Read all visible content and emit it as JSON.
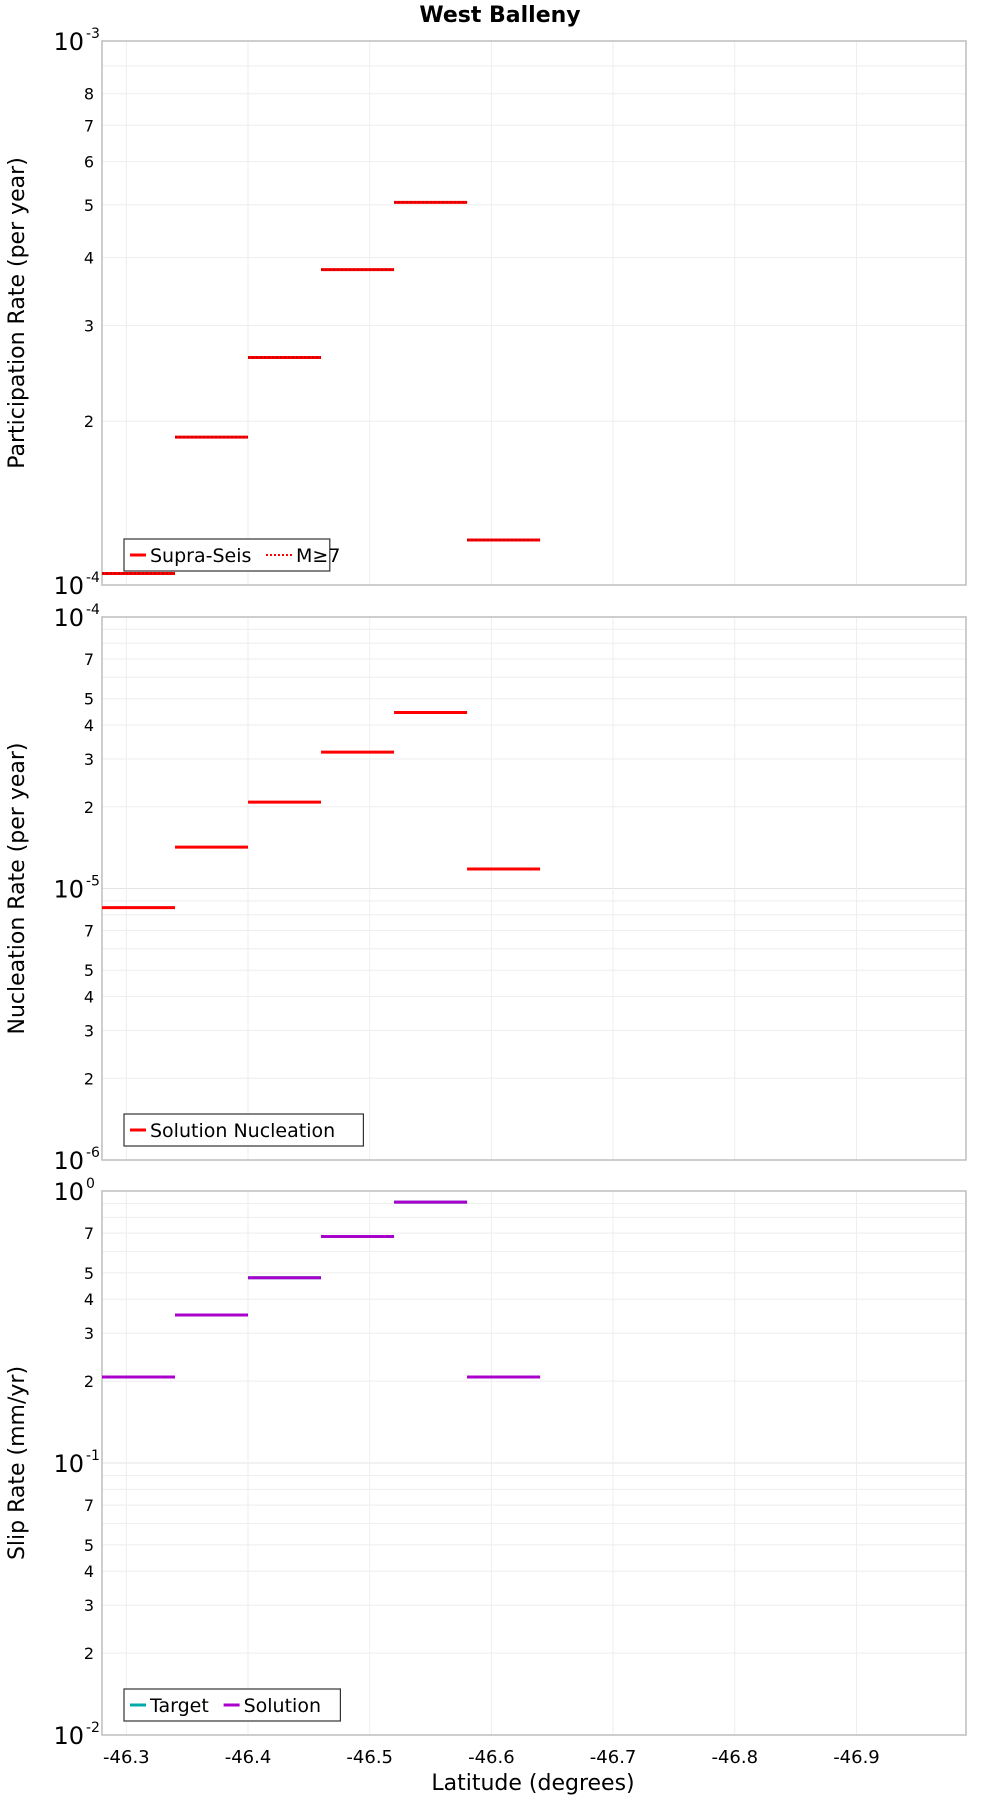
{
  "chart_data": {
    "type": "line",
    "title": "West Balleny",
    "xlabel": "Latitude (degrees)",
    "x_ticks": [
      "-46.3",
      "-46.4",
      "-46.5",
      "-46.6",
      "-46.7",
      "-46.8",
      "-46.9"
    ],
    "x_tick_values": [
      -46.3,
      -46.4,
      -46.5,
      -46.6,
      -46.7,
      -46.8,
      -46.9
    ],
    "xlim": [
      -46.28,
      -46.99
    ],
    "x_axis_reversed": true,
    "grid": true,
    "panels": [
      {
        "ylabel": "Participation Rate (per year)",
        "yscale": "log",
        "ylim": [
          0.0001,
          0.001
        ],
        "major_ticks": [
          {
            "base": "10",
            "exp": "-4",
            "value": 0.0001
          },
          {
            "base": "10",
            "exp": "-3",
            "value": 0.001
          }
        ],
        "minor_ticks": [
          {
            "label": "2",
            "value": 0.0002
          },
          {
            "label": "3",
            "value": 0.0003
          },
          {
            "label": "4",
            "value": 0.0004
          },
          {
            "label": "5",
            "value": 0.0005
          },
          {
            "label": "6",
            "value": 0.0006
          },
          {
            "label": "7",
            "value": 0.0007
          },
          {
            "label": "8",
            "value": 0.0008
          }
        ],
        "legend": {
          "position": "bottom-left",
          "entries": [
            {
              "name": "Supra-Seis",
              "color": "#ff0000",
              "style": "solid"
            },
            {
              "name": "M≥7",
              "color": "#ff0000",
              "style": "dotted"
            }
          ]
        },
        "series": [
          {
            "name": "Supra-Seis",
            "color": "#ff0000",
            "style": "solid",
            "segments": [
              {
                "x0": -46.28,
                "x1": -46.34,
                "y": 0.000105
              },
              {
                "x0": -46.34,
                "x1": -46.4,
                "y": 0.000187
              },
              {
                "x0": -46.4,
                "x1": -46.46,
                "y": 0.000262
              },
              {
                "x0": -46.46,
                "x1": -46.52,
                "y": 0.00038
              },
              {
                "x0": -46.52,
                "x1": -46.58,
                "y": 0.000505
              },
              {
                "x0": -46.58,
                "x1": -46.64,
                "y": 0.000121
              }
            ]
          },
          {
            "name": "M≥7",
            "color": "#ff0000",
            "style": "dotted",
            "segments": [
              {
                "x0": -46.28,
                "x1": -46.34,
                "y": 0.000105
              },
              {
                "x0": -46.34,
                "x1": -46.4,
                "y": 0.000187
              },
              {
                "x0": -46.4,
                "x1": -46.46,
                "y": 0.000262
              },
              {
                "x0": -46.46,
                "x1": -46.52,
                "y": 0.00038
              },
              {
                "x0": -46.52,
                "x1": -46.58,
                "y": 0.000505
              },
              {
                "x0": -46.58,
                "x1": -46.64,
                "y": 0.000121
              }
            ]
          }
        ]
      },
      {
        "ylabel": "Nucleation Rate (per year)",
        "yscale": "log",
        "ylim": [
          1e-06,
          0.0001
        ],
        "major_ticks": [
          {
            "base": "10",
            "exp": "-6",
            "value": 1e-06
          },
          {
            "base": "10",
            "exp": "-5",
            "value": 1e-05
          },
          {
            "base": "10",
            "exp": "-4",
            "value": 0.0001
          }
        ],
        "minor_ticks": [
          {
            "label": "2",
            "value": 2e-06
          },
          {
            "label": "3",
            "value": 3e-06
          },
          {
            "label": "4",
            "value": 4e-06
          },
          {
            "label": "5",
            "value": 5e-06
          },
          {
            "label": "7",
            "value": 7e-06
          },
          {
            "label": "2",
            "value": 2e-05
          },
          {
            "label": "3",
            "value": 3e-05
          },
          {
            "label": "4",
            "value": 4e-05
          },
          {
            "label": "5",
            "value": 5e-05
          },
          {
            "label": "7",
            "value": 7e-05
          }
        ],
        "legend": {
          "position": "bottom-left",
          "entries": [
            {
              "name": "Solution Nucleation",
              "color": "#ff0000",
              "style": "solid"
            }
          ]
        },
        "series": [
          {
            "name": "Solution Nucleation",
            "color": "#ff0000",
            "style": "solid",
            "segments": [
              {
                "x0": -46.28,
                "x1": -46.34,
                "y": 8.5e-06
              },
              {
                "x0": -46.34,
                "x1": -46.4,
                "y": 1.42e-05
              },
              {
                "x0": -46.4,
                "x1": -46.46,
                "y": 2.08e-05
              },
              {
                "x0": -46.46,
                "x1": -46.52,
                "y": 3.18e-05
              },
              {
                "x0": -46.52,
                "x1": -46.58,
                "y": 4.45e-05
              },
              {
                "x0": -46.58,
                "x1": -46.64,
                "y": 1.18e-05
              }
            ]
          }
        ]
      },
      {
        "ylabel": "Slip Rate (mm/yr)",
        "yscale": "log",
        "ylim": [
          0.01,
          1
        ],
        "major_ticks": [
          {
            "base": "10",
            "exp": "-2",
            "value": 0.01
          },
          {
            "base": "10",
            "exp": "-1",
            "value": 0.1
          },
          {
            "base": "10",
            "exp": "0",
            "value": 1
          }
        ],
        "minor_ticks": [
          {
            "label": "2",
            "value": 0.02
          },
          {
            "label": "3",
            "value": 0.03
          },
          {
            "label": "4",
            "value": 0.04
          },
          {
            "label": "5",
            "value": 0.05
          },
          {
            "label": "7",
            "value": 0.07
          },
          {
            "label": "2",
            "value": 0.2
          },
          {
            "label": "3",
            "value": 0.3
          },
          {
            "label": "4",
            "value": 0.4
          },
          {
            "label": "5",
            "value": 0.5
          },
          {
            "label": "7",
            "value": 0.7
          }
        ],
        "legend": {
          "position": "bottom-left",
          "entries": [
            {
              "name": "Target",
              "color": "#00aaaa",
              "style": "solid"
            },
            {
              "name": "Solution",
              "color": "#aa00cc",
              "style": "solid"
            }
          ]
        },
        "series": [
          {
            "name": "Target",
            "color": "#00aaaa",
            "style": "solid",
            "segments": [
              {
                "x0": -46.28,
                "x1": -46.34,
                "y": 0.207
              },
              {
                "x0": -46.34,
                "x1": -46.4,
                "y": 0.35
              },
              {
                "x0": -46.4,
                "x1": -46.46,
                "y": 0.48
              },
              {
                "x0": -46.46,
                "x1": -46.52,
                "y": 0.68
              },
              {
                "x0": -46.52,
                "x1": -46.58,
                "y": 0.91
              },
              {
                "x0": -46.58,
                "x1": -46.64,
                "y": 0.207
              }
            ]
          },
          {
            "name": "Solution",
            "color": "#aa00cc",
            "style": "solid",
            "segments": [
              {
                "x0": -46.28,
                "x1": -46.34,
                "y": 0.207
              },
              {
                "x0": -46.34,
                "x1": -46.4,
                "y": 0.35
              },
              {
                "x0": -46.4,
                "x1": -46.46,
                "y": 0.48
              },
              {
                "x0": -46.46,
                "x1": -46.52,
                "y": 0.68
              },
              {
                "x0": -46.52,
                "x1": -46.58,
                "y": 0.91
              },
              {
                "x0": -46.58,
                "x1": -46.64,
                "y": 0.207
              }
            ]
          }
        ]
      }
    ]
  }
}
